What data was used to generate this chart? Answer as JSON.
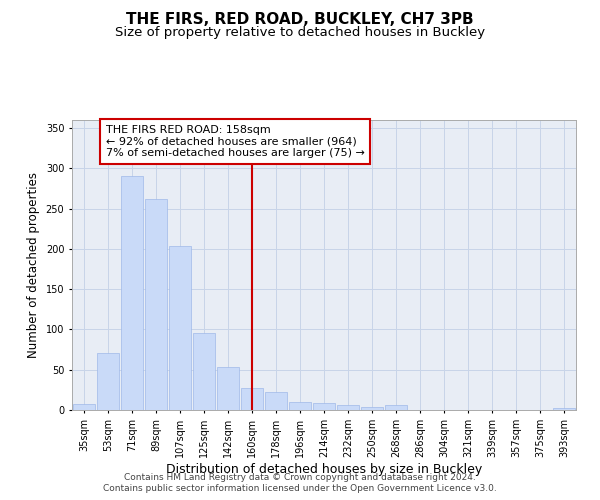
{
  "title": "THE FIRS, RED ROAD, BUCKLEY, CH7 3PB",
  "subtitle": "Size of property relative to detached houses in Buckley",
  "xlabel": "Distribution of detached houses by size in Buckley",
  "ylabel": "Number of detached properties",
  "categories": [
    "35sqm",
    "53sqm",
    "71sqm",
    "89sqm",
    "107sqm",
    "125sqm",
    "142sqm",
    "160sqm",
    "178sqm",
    "196sqm",
    "214sqm",
    "232sqm",
    "250sqm",
    "268sqm",
    "286sqm",
    "304sqm",
    "321sqm",
    "339sqm",
    "357sqm",
    "375sqm",
    "393sqm"
  ],
  "values": [
    7,
    71,
    290,
    262,
    203,
    95,
    54,
    27,
    22,
    10,
    9,
    6,
    4,
    6,
    0,
    0,
    0,
    0,
    0,
    0,
    2
  ],
  "bar_color": "#c9daf8",
  "bar_edge_color": "#9fb8e8",
  "grid_color": "#c8d4e8",
  "bg_color": "#e8edf5",
  "vline_x": 7,
  "vline_color": "#cc0000",
  "annotation_line1": "THE FIRS RED ROAD: 158sqm",
  "annotation_line2": "← 92% of detached houses are smaller (964)",
  "annotation_line3": "7% of semi-detached houses are larger (75) →",
  "annotation_box_color": "#cc0000",
  "ylim": [
    0,
    360
  ],
  "yticks": [
    0,
    50,
    100,
    150,
    200,
    250,
    300,
    350
  ],
  "footer1": "Contains HM Land Registry data © Crown copyright and database right 2024.",
  "footer2": "Contains public sector information licensed under the Open Government Licence v3.0.",
  "title_fontsize": 11,
  "subtitle_fontsize": 9.5,
  "annotation_fontsize": 8,
  "tick_fontsize": 7,
  "ylabel_fontsize": 8.5,
  "xlabel_fontsize": 9,
  "footer_fontsize": 6.5
}
